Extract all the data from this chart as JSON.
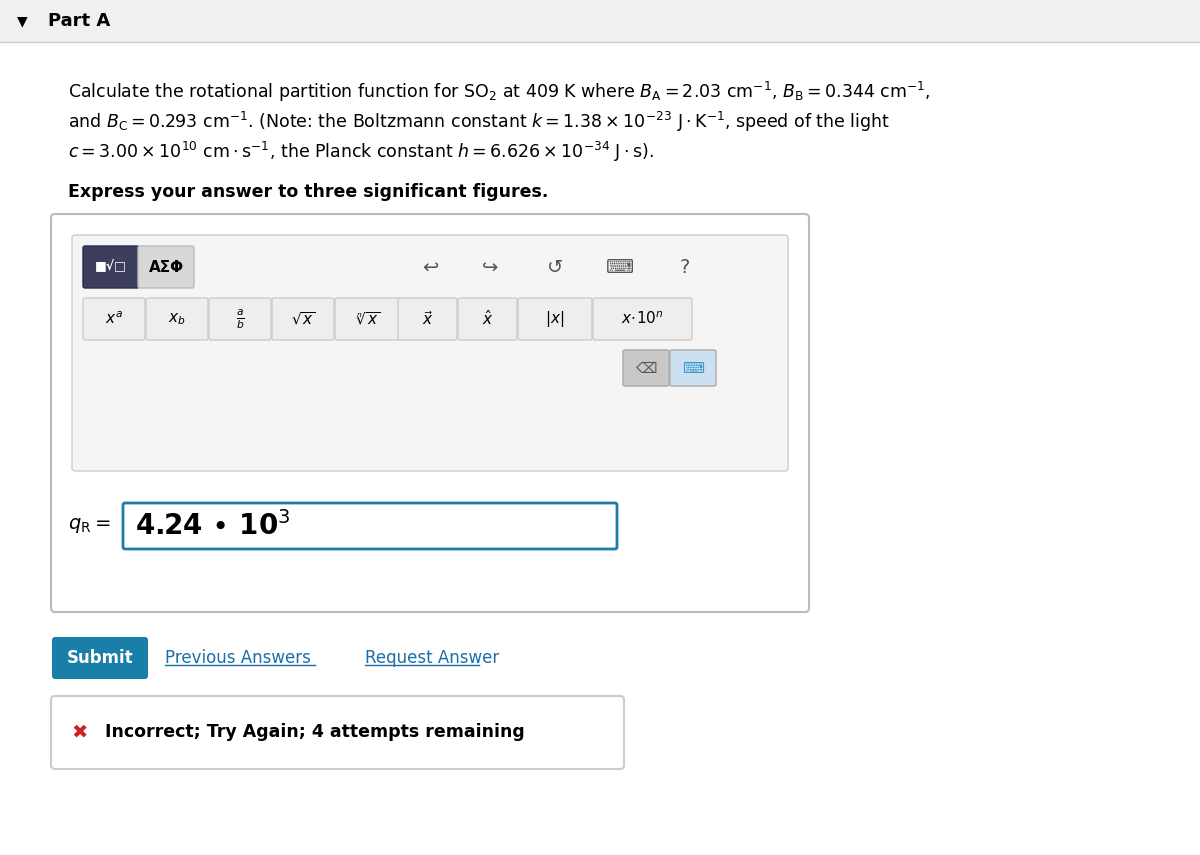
{
  "bg_color": "#f0f0f0",
  "page_bg": "#ffffff",
  "part_a_text": "Part A",
  "question_line1": "Calculate the rotational partition function for SO$_2$ at 409 K where $B_{\\rm A} = 2.03\\ \\rm{cm}^{-1}$, $B_{\\rm B} = 0.344\\ \\rm{cm}^{-1}$,",
  "question_line2": "and $B_{\\rm C} = 0.293\\ \\rm{cm}^{-1}$. (Note: the Boltzmann constant $k = 1.38 \\times 10^{-23}\\ \\rm{J \\cdot K^{-1}}$, speed of the light",
  "question_line3": "$c = 3.00 \\times 10^{10}\\ \\rm{cm \\cdot s^{-1}}$, the Planck constant $h = 6.626 \\times 10^{-34}\\ \\rm{J \\cdot s}$).",
  "express_text": "Express your answer to three significant figures.",
  "answer_label": "$q_{\\rm R} =$",
  "answer_value": "4.24 • 10$^3$",
  "submit_text": "Submit",
  "prev_text": "Previous Answers",
  "req_text": "Request Answer",
  "incorrect_text": "Incorrect; Try Again; 4 attempts remaining",
  "submit_color": "#1a7fa8",
  "incorrect_border": "#cccccc",
  "answer_border": "#1a7fa8",
  "toolbar_bg": "#e8e8e8",
  "btn_dark": "#4a4a6a",
  "btn_light": "#d0d0d0",
  "btn_blue": "#3399cc"
}
